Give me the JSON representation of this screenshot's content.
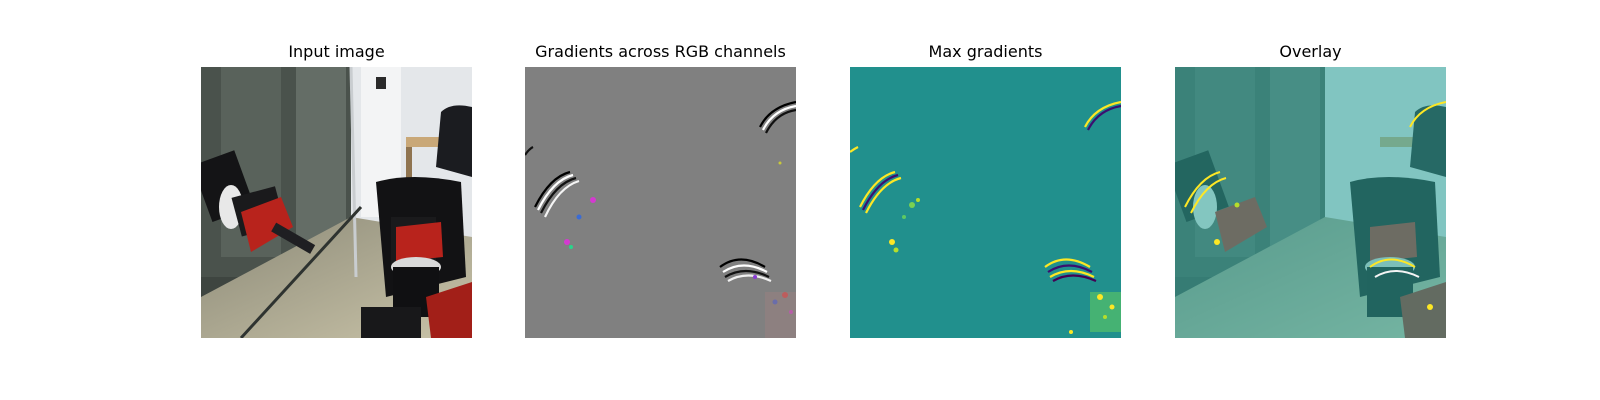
{
  "figure": {
    "panels": [
      {
        "title": "Input image"
      },
      {
        "title": "Gradients across RGB channels"
      },
      {
        "title": "Max gradients"
      },
      {
        "title": "Overlay"
      }
    ]
  },
  "colors": {
    "background": "#ffffff",
    "gradient_neutral_gray": "#808080",
    "max_gradient_base_teal": "#21908d",
    "max_gradient_high_yellow": "#fde725",
    "robot_red": "#b8231c",
    "robot_black": "#141416",
    "overlay_tint": "#4fd1c5"
  }
}
